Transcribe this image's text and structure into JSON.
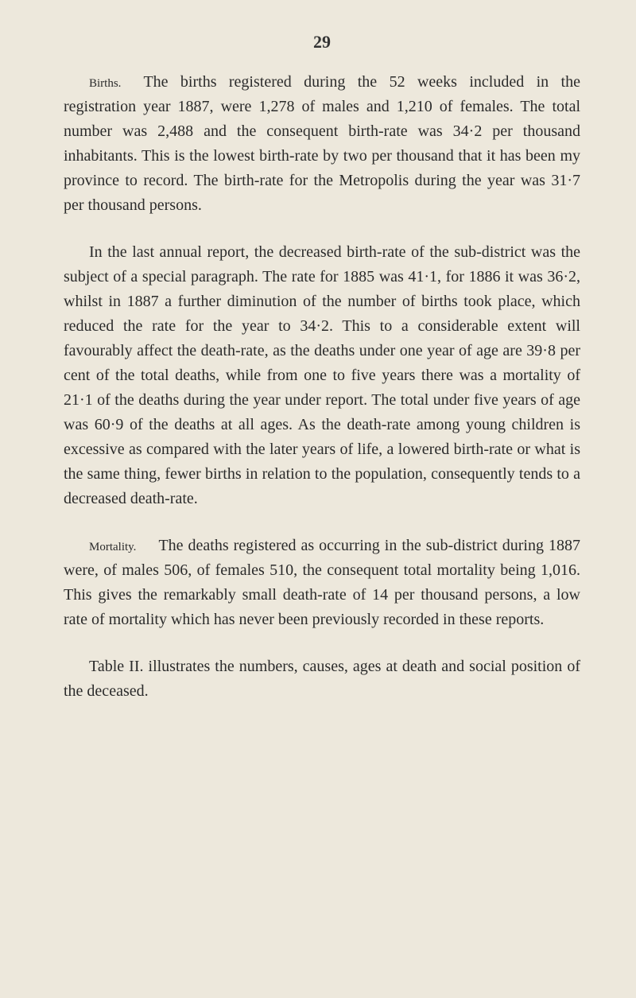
{
  "page_number": "29",
  "para1": {
    "label": "Births.",
    "text": "The births registered during the 52 weeks included in the registration year 1887, were 1,278 of males and 1,210 of females. The total number was 2,488 and the consequent birth-rate was 34·2 per thousand inhabitants. This is the lowest birth-rate by two per thousand that it has been my province to record. The birth-rate for the Metropolis during the year was 31·7 per thousand persons."
  },
  "para2": {
    "text": "In the last annual report, the decreased birth-rate of the sub-district was the subject of a special paragraph. The rate for 1885 was 41·1, for 1886 it was 36·2, whilst in 1887 a further diminution of the number of births took place, which reduced the rate for the year to 34·2. This to a considerable extent will favourably affect the death-rate, as the deaths under one year of age are 39·8 per cent of the total deaths, while from one to five years there was a mortality of 21·1 of the deaths during the year under report. The total under five years of age was 60·9 of the deaths at all ages. As the death-rate among young children is excessive as compared with the later years of life, a lowered birth-rate or what is the same thing, fewer births in relation to the population, consequently tends to a decreased death-rate."
  },
  "para3": {
    "label": "Mortality.",
    "text": "The deaths registered as occurring in the sub-district during 1887 were, of males 506, of females 510, the consequent total mortality being 1,016. This gives the remarkably small death-rate of 14 per thousand persons, a low rate of mortality which has never been previously recorded in these reports."
  },
  "para4": {
    "text": "Table II. illustrates the numbers, causes, ages at death and social position of the deceased."
  }
}
